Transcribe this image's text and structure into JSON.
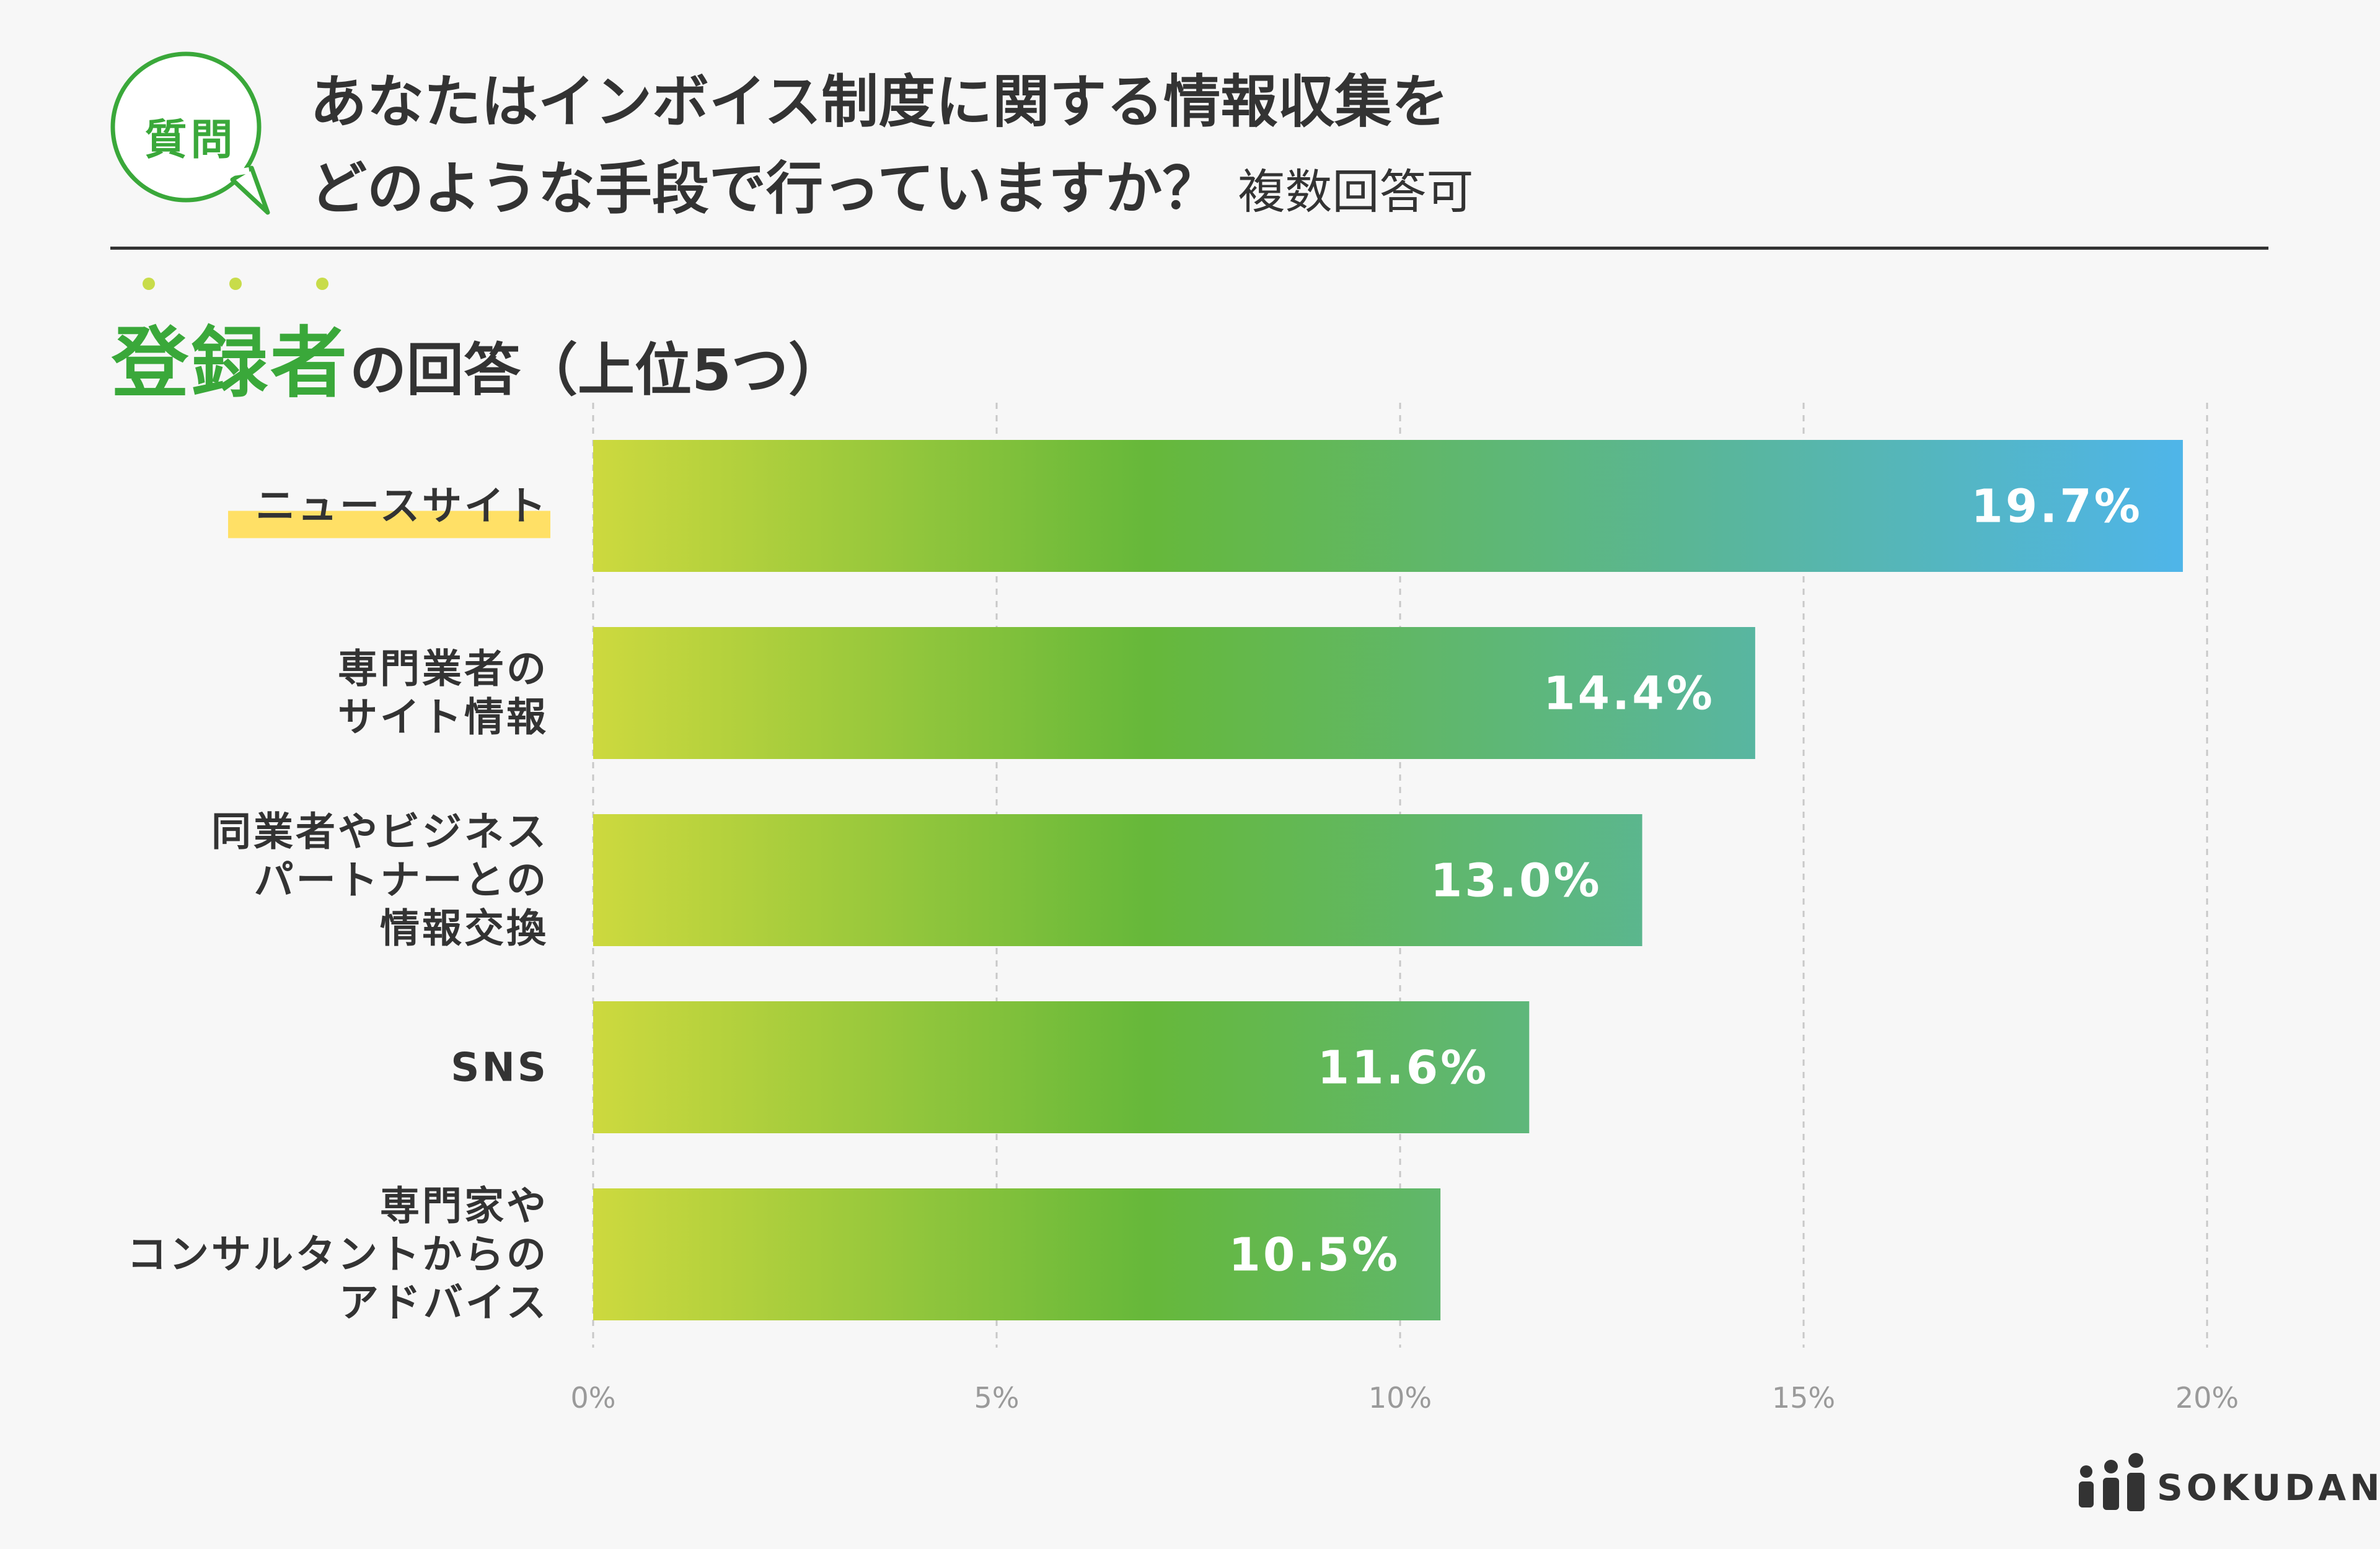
{
  "question": {
    "badge": "質問",
    "line1": "あなたはインボイス制度に関する情報収集を",
    "line2": "どのような手段で行っていますか？",
    "note": "複数回答可"
  },
  "subtitle": {
    "highlight": "登録者",
    "rest": "の回答（上位5つ）"
  },
  "chart_data": {
    "type": "bar",
    "orientation": "horizontal",
    "categories": [
      [
        "ニュースサイト"
      ],
      [
        "専門業者の",
        "サイト情報"
      ],
      [
        "同業者やビジネス",
        "パートナーとの",
        "情報交換"
      ],
      [
        "SNS"
      ],
      [
        "専門家や",
        "コンサルタントからの",
        "アドバイス"
      ]
    ],
    "values": [
      19.7,
      14.4,
      13.0,
      11.6,
      10.5
    ],
    "value_labels": [
      "19.7%",
      "14.4%",
      "13.0%",
      "11.6%",
      "10.5%"
    ],
    "highlighted_category": 0,
    "xlim": [
      0,
      20
    ],
    "ticks": [
      0,
      5,
      10,
      15,
      20
    ],
    "tick_labels": [
      "0%",
      "5%",
      "10%",
      "15%",
      "20%"
    ],
    "grid": "vertical dashed",
    "colors": {
      "gradient_start": "#cdd93e",
      "gradient_mid": "#66b83a",
      "gradient_end": "#4fb5e8",
      "highlight_marker": "#ffe066",
      "grid": "#c8c8c8",
      "tick_text": "#9a9a9a",
      "label_text": "#333333",
      "value_text": "#ffffff"
    }
  },
  "logo": {
    "name": "SOKUDAN",
    "icon": "people-icon"
  },
  "colors": {
    "accent": "#3aa83a",
    "background": "#f7f7f7"
  }
}
